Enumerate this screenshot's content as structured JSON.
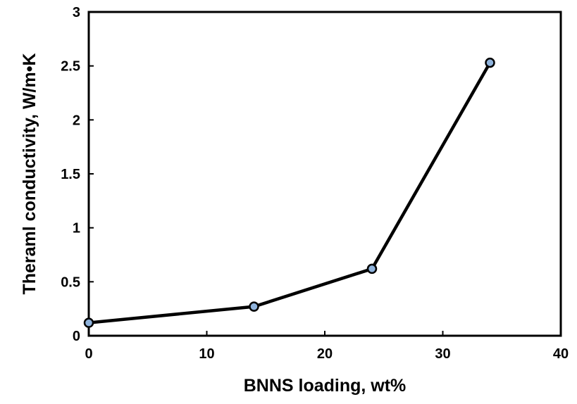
{
  "chart_data": {
    "type": "line",
    "title": "",
    "xlabel": "BNNS loading, wt%",
    "ylabel": "Theraml conductivity, W/m•K",
    "xlim": [
      0,
      40
    ],
    "ylim": [
      0,
      3
    ],
    "xticks": [
      0,
      10,
      20,
      30,
      40
    ],
    "yticks": [
      0,
      0.5,
      1,
      1.5,
      2,
      2.5,
      3
    ],
    "xtick_labels": [
      "0",
      "10",
      "20",
      "30",
      "40"
    ],
    "ytick_labels": [
      "0",
      "0.5",
      "1",
      "1.5",
      "2",
      "2.5",
      "3"
    ],
    "grid": false,
    "legend": "none",
    "series": [
      {
        "x": [
          0,
          14,
          24,
          34
        ],
        "y": [
          0.12,
          0.27,
          0.62,
          2.53
        ]
      }
    ],
    "colors": {
      "line": "#000000",
      "marker_fill": "#8fb3dc",
      "marker_edge": "#000000",
      "axes": "#000000"
    }
  }
}
